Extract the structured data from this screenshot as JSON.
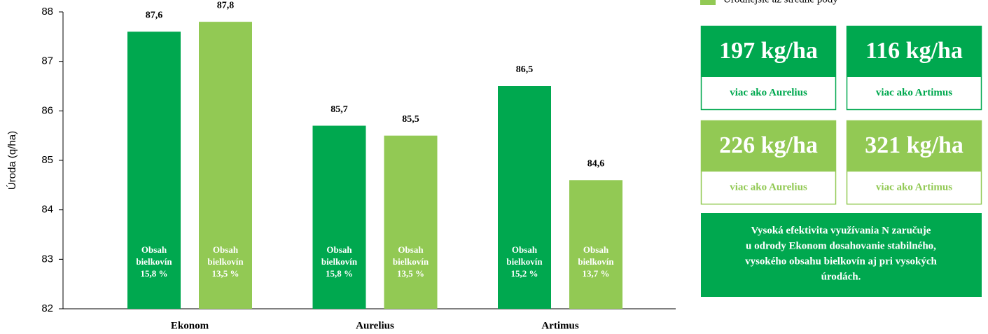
{
  "chart_data": {
    "type": "bar",
    "y_label": "Úroda (q/ha)",
    "categories": [
      "Ekonom",
      "Aurelius",
      "Artimus"
    ],
    "series": [
      {
        "color": "#00a84f",
        "values": [
          87.6,
          85.7,
          86.5
        ],
        "value_labels": [
          "87,6",
          "85,7",
          "86,5"
        ],
        "inner_labels": [
          [
            "Obsah",
            "bielkovín",
            "15,8 %"
          ],
          [
            "Obsah",
            "bielkovín",
            "15,8 %"
          ],
          [
            "Obsah",
            "bielkovín",
            "15,2 %"
          ]
        ]
      },
      {
        "name": "Úrodnejšie až stredné pôdy",
        "color": "#92c954",
        "values": [
          87.8,
          85.5,
          84.6
        ],
        "value_labels": [
          "87,8",
          "85,5",
          "84,6"
        ],
        "inner_labels": [
          [
            "Obsah",
            "bielkovín",
            "13,5 %"
          ],
          [
            "Obsah",
            "bielkovín",
            "13,5 %"
          ],
          [
            "Obsah",
            "bielkovín",
            "13,7 %"
          ]
        ]
      }
    ],
    "ylim": [
      82,
      88
    ],
    "yticks": [
      82,
      83,
      84,
      85,
      86,
      87,
      88
    ]
  },
  "panels": [
    {
      "value": "197 kg/ha",
      "text": "viac ako Aurelius",
      "color": "#00a84f"
    },
    {
      "value": "116 kg/ha",
      "text": "viac ako Artimus",
      "color": "#00a84f"
    },
    {
      "value": "226 kg/ha",
      "text": "viac ako Aurelius",
      "color": "#92c954"
    },
    {
      "value": "321 kg/ha",
      "text": "viac ako Artimus",
      "color": "#92c954"
    }
  ],
  "note": [
    "Vysoká efektivita využívania N zaručuje",
    "u odrody Ekonom dosahovanie stabilného,",
    "vysokého obsahu bielkovín aj pri vysokých",
    "úrodách."
  ]
}
